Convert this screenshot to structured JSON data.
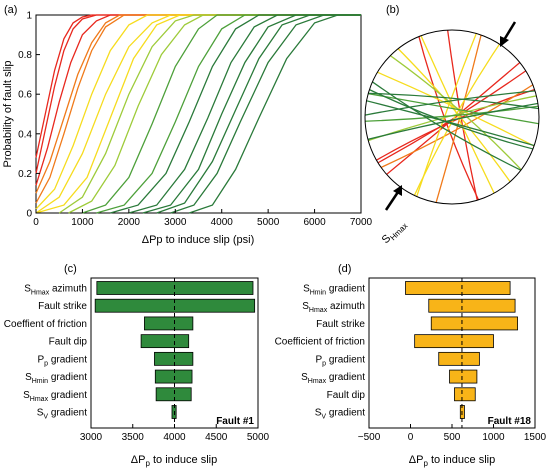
{
  "panel_labels": {
    "a": "(a)",
    "b": "(b)",
    "c": "(c)",
    "d": "(d)"
  },
  "colors": {
    "red": "#e8281e",
    "orange": "#f07a1a",
    "yellow": "#f6dc1e",
    "lightgreen": "#9ecb3a",
    "green": "#4da03a",
    "darkgreen": "#2a7a3a",
    "bar_c": "#2f8a3c",
    "bar_d": "#f8b418"
  },
  "chart_data": [
    {
      "id": "a",
      "type": "line",
      "xlabel": "ΔPp to induce slip (psi)",
      "ylabel": "Probability of fault slip",
      "xlim": [
        0,
        7000
      ],
      "ylim": [
        0,
        1
      ],
      "xticks": [
        0,
        1000,
        2000,
        3000,
        4000,
        5000,
        6000,
        7000
      ],
      "yticks": [
        0,
        0.2,
        0.4,
        0.6,
        0.8,
        1
      ],
      "series": [
        {
          "color": "red",
          "x": [
            0,
            200,
            400,
            600,
            800,
            1000,
            1200
          ],
          "y": [
            0.28,
            0.5,
            0.72,
            0.88,
            0.96,
            0.99,
            1.0
          ]
        },
        {
          "color": "red",
          "x": [
            0,
            200,
            400,
            600,
            800,
            1000,
            1300
          ],
          "y": [
            0.2,
            0.42,
            0.64,
            0.82,
            0.93,
            0.98,
            1.0
          ]
        },
        {
          "color": "red",
          "x": [
            0,
            250,
            500,
            750,
            1000,
            1300,
            1600
          ],
          "y": [
            0.14,
            0.33,
            0.56,
            0.76,
            0.9,
            0.97,
            1.0
          ]
        },
        {
          "color": "orange",
          "x": [
            0,
            300,
            600,
            900,
            1200,
            1500,
            1800
          ],
          "y": [
            0.1,
            0.26,
            0.48,
            0.7,
            0.86,
            0.96,
            1.0
          ]
        },
        {
          "color": "orange",
          "x": [
            0,
            300,
            600,
            900,
            1200,
            1500,
            1900
          ],
          "y": [
            0.05,
            0.18,
            0.4,
            0.63,
            0.82,
            0.94,
            1.0
          ]
        },
        {
          "color": "yellow",
          "x": [
            0,
            400,
            800,
            1200,
            1600,
            2000,
            2400
          ],
          "y": [
            0.02,
            0.12,
            0.34,
            0.6,
            0.82,
            0.95,
            1.0
          ]
        },
        {
          "color": "yellow",
          "x": [
            0,
            500,
            1000,
            1500,
            2000,
            2500,
            2900
          ],
          "y": [
            0.0,
            0.08,
            0.3,
            0.6,
            0.84,
            0.96,
            1.0
          ]
        },
        {
          "color": "yellow",
          "x": [
            0,
            600,
            1100,
            1600,
            2100,
            2600,
            3100
          ],
          "y": [
            0.0,
            0.04,
            0.18,
            0.48,
            0.78,
            0.95,
            1.0
          ]
        },
        {
          "color": "lightgreen",
          "x": [
            500,
            1000,
            1500,
            2000,
            2500,
            3000,
            3400
          ],
          "y": [
            0.0,
            0.08,
            0.3,
            0.6,
            0.84,
            0.97,
            1.0
          ]
        },
        {
          "color": "lightgreen",
          "x": [
            700,
            1200,
            1700,
            2200,
            2700,
            3200,
            3600
          ],
          "y": [
            0.0,
            0.06,
            0.24,
            0.54,
            0.8,
            0.95,
            1.0
          ]
        },
        {
          "color": "green",
          "x": [
            1000,
            1500,
            2000,
            2500,
            3000,
            3500,
            3900
          ],
          "y": [
            0.0,
            0.04,
            0.18,
            0.45,
            0.74,
            0.93,
            1.0
          ]
        },
        {
          "color": "green",
          "x": [
            1300,
            1900,
            2500,
            3000,
            3500,
            4000,
            4500
          ],
          "y": [
            0.0,
            0.04,
            0.2,
            0.46,
            0.74,
            0.93,
            1.0
          ]
        },
        {
          "color": "darkgreen",
          "x": [
            1600,
            2200,
            2800,
            3300,
            3800,
            4300,
            4800
          ],
          "y": [
            0.0,
            0.04,
            0.2,
            0.46,
            0.74,
            0.93,
            1.0
          ]
        },
        {
          "color": "darkgreen",
          "x": [
            2000,
            2600,
            3200,
            3700,
            4200,
            4700,
            5200
          ],
          "y": [
            0.0,
            0.04,
            0.22,
            0.48,
            0.76,
            0.94,
            1.0
          ]
        },
        {
          "color": "darkgreen",
          "x": [
            2300,
            2900,
            3500,
            4000,
            4500,
            5000,
            5600
          ],
          "y": [
            0.0,
            0.04,
            0.22,
            0.5,
            0.76,
            0.94,
            1.0
          ]
        },
        {
          "color": "darkgreen",
          "x": [
            2600,
            3200,
            3800,
            4300,
            4800,
            5300,
            5900
          ],
          "y": [
            0.0,
            0.05,
            0.26,
            0.52,
            0.78,
            0.95,
            1.0
          ]
        },
        {
          "color": "darkgreen",
          "x": [
            2900,
            3400,
            3900,
            4400,
            5000,
            5600,
            6200
          ],
          "y": [
            0.0,
            0.04,
            0.2,
            0.46,
            0.76,
            0.95,
            1.0
          ]
        },
        {
          "color": "darkgreen",
          "x": [
            3300,
            3800,
            4300,
            4800,
            5400,
            6000,
            6500
          ],
          "y": [
            0.0,
            0.04,
            0.22,
            0.48,
            0.78,
            0.96,
            1.0
          ]
        }
      ]
    },
    {
      "id": "b",
      "type": "stereonet",
      "annotation": "SHmax",
      "lines": [
        {
          "color": "red",
          "angle": 25
        },
        {
          "color": "red",
          "angle": 32
        },
        {
          "color": "red",
          "angle": 40
        },
        {
          "color": "red",
          "angle": 100
        },
        {
          "color": "red",
          "angle": 110
        },
        {
          "color": "orange",
          "angle": 28
        },
        {
          "color": "orange",
          "angle": 75
        },
        {
          "color": "yellow",
          "angle": 70
        },
        {
          "color": "yellow",
          "angle": 60
        },
        {
          "color": "yellow",
          "angle": 130
        },
        {
          "color": "yellow",
          "angle": 155
        },
        {
          "color": "yellow",
          "angle": 115
        },
        {
          "color": "lightgreen",
          "angle": 15
        },
        {
          "color": "lightgreen",
          "angle": 140
        },
        {
          "color": "green",
          "angle": 5
        },
        {
          "color": "green",
          "angle": 170
        },
        {
          "color": "darkgreen",
          "angle": 8
        },
        {
          "color": "darkgreen",
          "angle": 160
        },
        {
          "color": "darkgreen",
          "angle": 175
        },
        {
          "color": "darkgreen",
          "angle": 165
        },
        {
          "color": "darkgreen",
          "angle": 12
        },
        {
          "color": "darkgreen",
          "angle": 150
        }
      ]
    },
    {
      "id": "c",
      "type": "bar",
      "orientation": "horizontal",
      "title": "Fault #1",
      "xlabel": "ΔPp to induce slip",
      "xlim": [
        3000,
        5000
      ],
      "xticks": [
        3000,
        3500,
        4000,
        4500,
        5000
      ],
      "baseline": 4000,
      "categories": [
        "SHmax azimuth",
        "Fault strike",
        "Coeffient of friction",
        "Fault dip",
        "Pp gradient",
        "SHmin gradient",
        "SHmax gradient",
        "SV gradient"
      ],
      "low": [
        3070,
        3050,
        3640,
        3600,
        3760,
        3770,
        3780,
        3970
      ],
      "high": [
        4940,
        4960,
        4220,
        4170,
        4220,
        4210,
        4200,
        4020
      ]
    },
    {
      "id": "d",
      "type": "bar",
      "orientation": "horizontal",
      "title": "Fault #18",
      "xlabel": "ΔPp to induce slip",
      "xlim": [
        -500,
        1500
      ],
      "xticks": [
        -500,
        0,
        500,
        1000,
        1500
      ],
      "baseline": 620,
      "categories": [
        "SHmin gradient",
        "SHmax azimuth",
        "Fault strike",
        "Coefficient of friction",
        "Pp gradient",
        "SHmax gradient",
        "Fault dip",
        "SV gradient"
      ],
      "low": [
        -60,
        220,
        250,
        50,
        340,
        470,
        530,
        600
      ],
      "high": [
        1200,
        1260,
        1290,
        1000,
        830,
        800,
        780,
        650
      ]
    }
  ]
}
